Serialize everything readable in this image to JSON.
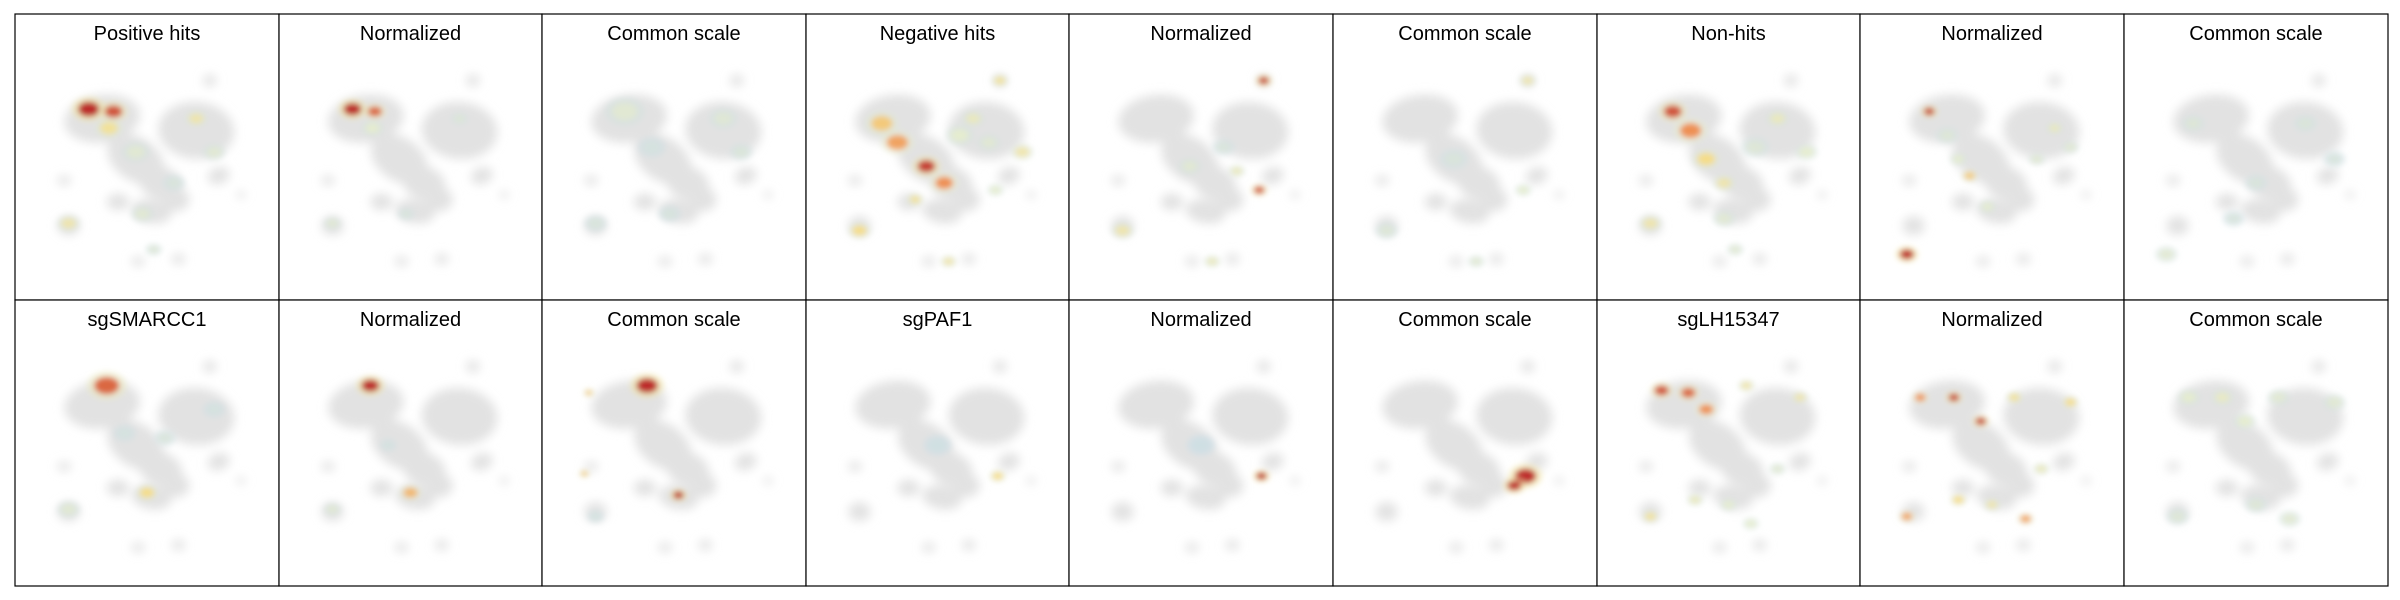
{
  "rows": [
    {
      "panels": [
        {
          "title": "Positive hits",
          "blobs": [
            [
              0.24,
              0.24,
              0.06,
              1.0
            ],
            [
              0.35,
              0.25,
              0.05,
              0.9
            ],
            [
              0.33,
              0.32,
              0.05,
              0.5
            ],
            [
              0.45,
              0.42,
              0.05,
              0.3
            ],
            [
              0.72,
              0.28,
              0.04,
              0.45
            ],
            [
              0.8,
              0.42,
              0.04,
              0.3
            ],
            [
              0.15,
              0.72,
              0.04,
              0.45
            ],
            [
              0.48,
              0.68,
              0.04,
              0.3
            ],
            [
              0.53,
              0.83,
              0.03,
              0.25
            ],
            [
              0.62,
              0.55,
              0.04,
              0.2
            ]
          ]
        },
        {
          "title": "Normalized",
          "blobs": [
            [
              0.24,
              0.24,
              0.05,
              1.0
            ],
            [
              0.34,
              0.25,
              0.04,
              0.85
            ],
            [
              0.33,
              0.32,
              0.04,
              0.35
            ],
            [
              0.72,
              0.28,
              0.03,
              0.25
            ],
            [
              0.15,
              0.72,
              0.03,
              0.3
            ],
            [
              0.48,
              0.68,
              0.03,
              0.2
            ]
          ]
        },
        {
          "title": "Common scale",
          "blobs": [
            [
              0.28,
              0.25,
              0.07,
              0.3
            ],
            [
              0.72,
              0.28,
              0.05,
              0.28
            ],
            [
              0.8,
              0.42,
              0.04,
              0.22
            ],
            [
              0.15,
              0.72,
              0.04,
              0.2
            ],
            [
              0.48,
              0.68,
              0.04,
              0.18
            ],
            [
              0.4,
              0.4,
              0.05,
              0.15
            ]
          ]
        }
      ]
    },
    {
      "panels": [
        {
          "title": "Negative hits",
          "blobs": [
            [
              0.78,
              0.12,
              0.03,
              0.5
            ],
            [
              0.25,
              0.3,
              0.06,
              0.6
            ],
            [
              0.32,
              0.38,
              0.06,
              0.7
            ],
            [
              0.45,
              0.48,
              0.05,
              0.95
            ],
            [
              0.53,
              0.55,
              0.05,
              0.75
            ],
            [
              0.66,
              0.28,
              0.04,
              0.4
            ],
            [
              0.88,
              0.42,
              0.04,
              0.45
            ],
            [
              0.73,
              0.38,
              0.04,
              0.3
            ],
            [
              0.15,
              0.75,
              0.04,
              0.55
            ],
            [
              0.4,
              0.62,
              0.03,
              0.5
            ],
            [
              0.76,
              0.58,
              0.03,
              0.35
            ],
            [
              0.55,
              0.88,
              0.03,
              0.45
            ],
            [
              0.6,
              0.35,
              0.05,
              0.35
            ]
          ]
        },
        {
          "title": "Normalized",
          "blobs": [
            [
              0.78,
              0.12,
              0.03,
              0.95
            ],
            [
              0.76,
              0.58,
              0.03,
              0.9
            ],
            [
              0.15,
              0.75,
              0.04,
              0.45
            ],
            [
              0.55,
              0.88,
              0.03,
              0.4
            ],
            [
              0.45,
              0.48,
              0.04,
              0.3
            ],
            [
              0.66,
              0.5,
              0.03,
              0.4
            ],
            [
              0.6,
              0.4,
              0.04,
              0.2
            ]
          ]
        },
        {
          "title": "Common scale",
          "blobs": [
            [
              0.78,
              0.12,
              0.03,
              0.45
            ],
            [
              0.76,
              0.58,
              0.03,
              0.35
            ],
            [
              0.15,
              0.75,
              0.04,
              0.25
            ],
            [
              0.55,
              0.88,
              0.03,
              0.3
            ],
            [
              0.45,
              0.45,
              0.05,
              0.2
            ]
          ]
        }
      ]
    },
    {
      "panels": [
        {
          "title": "Non-hits",
          "blobs": [
            [
              0.25,
              0.25,
              0.05,
              0.9
            ],
            [
              0.33,
              0.33,
              0.06,
              0.75
            ],
            [
              0.4,
              0.45,
              0.05,
              0.55
            ],
            [
              0.48,
              0.55,
              0.04,
              0.45
            ],
            [
              0.72,
              0.28,
              0.04,
              0.4
            ],
            [
              0.85,
              0.42,
              0.04,
              0.35
            ],
            [
              0.15,
              0.72,
              0.04,
              0.45
            ],
            [
              0.48,
              0.7,
              0.04,
              0.3
            ],
            [
              0.53,
              0.83,
              0.03,
              0.3
            ],
            [
              0.62,
              0.4,
              0.05,
              0.25
            ]
          ]
        },
        {
          "title": "Normalized",
          "blobs": [
            [
              0.22,
              0.25,
              0.03,
              0.95
            ],
            [
              0.12,
              0.85,
              0.04,
              1.0
            ],
            [
              0.4,
              0.52,
              0.03,
              0.6
            ],
            [
              0.78,
              0.32,
              0.03,
              0.4
            ],
            [
              0.35,
              0.45,
              0.03,
              0.35
            ],
            [
              0.48,
              0.65,
              0.03,
              0.35
            ],
            [
              0.7,
              0.45,
              0.03,
              0.3
            ],
            [
              0.85,
              0.4,
              0.03,
              0.3
            ],
            [
              0.3,
              0.35,
              0.04,
              0.25
            ]
          ]
        },
        {
          "title": "Common scale",
          "blobs": [
            [
              0.1,
              0.85,
              0.04,
              0.3
            ],
            [
              0.22,
              0.3,
              0.04,
              0.25
            ],
            [
              0.5,
              0.55,
              0.04,
              0.2
            ],
            [
              0.72,
              0.3,
              0.04,
              0.22
            ],
            [
              0.4,
              0.7,
              0.04,
              0.18
            ],
            [
              0.85,
              0.45,
              0.04,
              0.18
            ]
          ]
        }
      ]
    }
  ],
  "rows2": [
    {
      "panels": [
        {
          "title": "sgSMARCC1",
          "blobs": [
            [
              0.32,
              0.2,
              0.07,
              0.85
            ],
            [
              0.58,
              0.42,
              0.04,
              0.2
            ],
            [
              0.5,
              0.65,
              0.04,
              0.55
            ],
            [
              0.15,
              0.72,
              0.04,
              0.3
            ],
            [
              0.4,
              0.4,
              0.04,
              0.15
            ],
            [
              0.8,
              0.3,
              0.04,
              0.15
            ]
          ]
        },
        {
          "title": "Normalized",
          "blobs": [
            [
              0.32,
              0.2,
              0.05,
              1.0
            ],
            [
              0.5,
              0.65,
              0.04,
              0.65
            ],
            [
              0.15,
              0.72,
              0.03,
              0.3
            ],
            [
              0.4,
              0.45,
              0.03,
              0.15
            ]
          ]
        },
        {
          "title": "Common scale",
          "blobs": [
            [
              0.38,
              0.2,
              0.06,
              1.0
            ],
            [
              0.12,
              0.23,
              0.02,
              0.6
            ],
            [
              0.1,
              0.57,
              0.02,
              0.6
            ],
            [
              0.52,
              0.66,
              0.03,
              1.0
            ],
            [
              0.15,
              0.75,
              0.03,
              0.15
            ]
          ]
        }
      ]
    },
    {
      "panels": [
        {
          "title": "sgPAF1",
          "blobs": [
            [
              0.77,
              0.58,
              0.03,
              0.55
            ],
            [
              0.5,
              0.45,
              0.05,
              0.1
            ]
          ]
        },
        {
          "title": "Normalized",
          "blobs": [
            [
              0.77,
              0.58,
              0.03,
              1.0
            ],
            [
              0.5,
              0.45,
              0.05,
              0.08
            ]
          ]
        },
        {
          "title": "Common scale",
          "blobs": [
            [
              0.77,
              0.58,
              0.06,
              1.0
            ],
            [
              0.72,
              0.62,
              0.04,
              1.0
            ]
          ]
        }
      ]
    },
    {
      "panels": [
        {
          "title": "sgLH15347",
          "blobs": [
            [
              0.2,
              0.22,
              0.04,
              0.9
            ],
            [
              0.32,
              0.23,
              0.04,
              0.85
            ],
            [
              0.4,
              0.3,
              0.04,
              0.75
            ],
            [
              0.58,
              0.2,
              0.03,
              0.45
            ],
            [
              0.82,
              0.25,
              0.03,
              0.45
            ],
            [
              0.15,
              0.75,
              0.03,
              0.5
            ],
            [
              0.35,
              0.68,
              0.03,
              0.4
            ],
            [
              0.5,
              0.7,
              0.03,
              0.35
            ],
            [
              0.6,
              0.78,
              0.03,
              0.35
            ],
            [
              0.72,
              0.55,
              0.03,
              0.3
            ]
          ]
        },
        {
          "title": "Normalized",
          "blobs": [
            [
              0.18,
              0.25,
              0.03,
              0.75
            ],
            [
              0.33,
              0.25,
              0.03,
              0.95
            ],
            [
              0.45,
              0.35,
              0.03,
              0.95
            ],
            [
              0.6,
              0.25,
              0.03,
              0.5
            ],
            [
              0.85,
              0.27,
              0.03,
              0.55
            ],
            [
              0.12,
              0.75,
              0.03,
              0.7
            ],
            [
              0.35,
              0.68,
              0.03,
              0.55
            ],
            [
              0.5,
              0.7,
              0.03,
              0.45
            ],
            [
              0.65,
              0.76,
              0.03,
              0.7
            ],
            [
              0.72,
              0.55,
              0.03,
              0.4
            ]
          ]
        },
        {
          "title": "Common scale",
          "blobs": [
            [
              0.2,
              0.25,
              0.04,
              0.35
            ],
            [
              0.35,
              0.25,
              0.04,
              0.38
            ],
            [
              0.45,
              0.35,
              0.04,
              0.35
            ],
            [
              0.6,
              0.25,
              0.04,
              0.3
            ],
            [
              0.85,
              0.27,
              0.04,
              0.3
            ],
            [
              0.15,
              0.75,
              0.04,
              0.25
            ],
            [
              0.5,
              0.7,
              0.04,
              0.25
            ],
            [
              0.65,
              0.76,
              0.04,
              0.3
            ]
          ]
        }
      ]
    }
  ]
}
